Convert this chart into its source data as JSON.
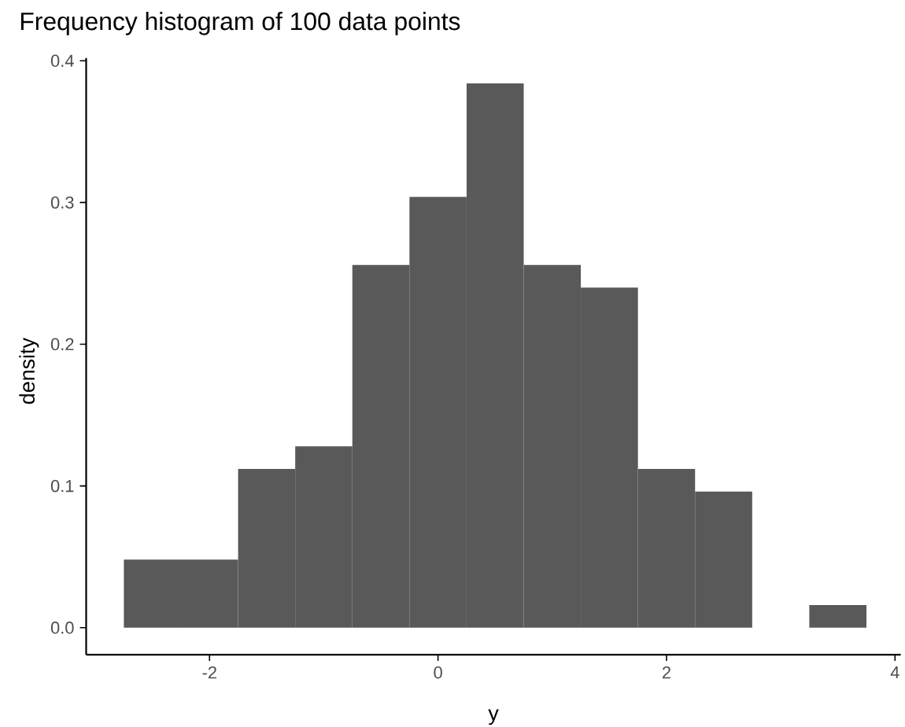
{
  "chart_data": {
    "type": "histogram",
    "title": "Frequency histogram of 100 data points",
    "xlabel": "y",
    "ylabel": "density",
    "bins": [
      -2.75,
      -2.25,
      -1.75,
      -1.25,
      -0.75,
      -0.25,
      0.25,
      0.75,
      1.25,
      1.75,
      2.25,
      2.75,
      3.25,
      3.75
    ],
    "values": [
      0.048,
      0.048,
      0.112,
      0.128,
      0.256,
      0.304,
      0.384,
      0.256,
      0.24,
      0.112,
      0.096,
      0,
      0.016
    ],
    "color": "#595959",
    "xlim": [
      -3.08,
      4.05
    ],
    "ylim": [
      -0.019,
      0.402
    ],
    "xticks": [
      -2,
      0,
      2,
      4
    ],
    "yticks": [
      {
        "value": 0,
        "label": "0.0"
      },
      0.1,
      0.2,
      0.3,
      0.4
    ]
  }
}
